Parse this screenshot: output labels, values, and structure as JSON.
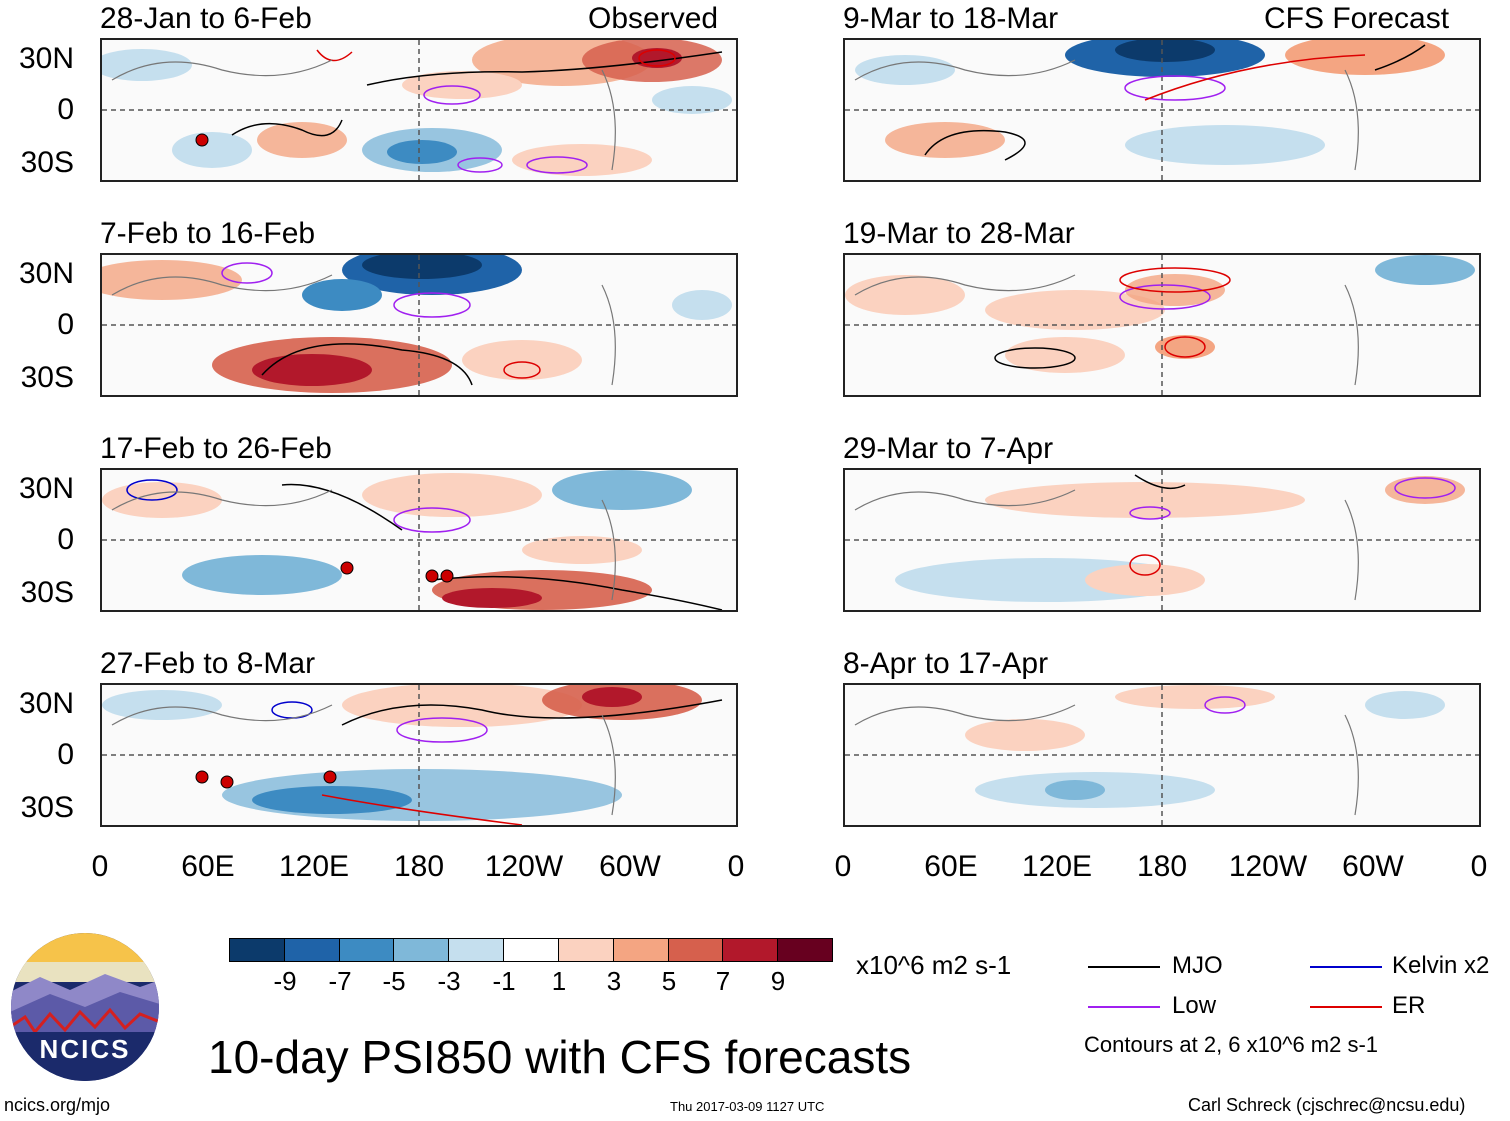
{
  "panels": {
    "left": [
      {
        "title": "28-Jan to 6-Feb",
        "tag": "Observed"
      },
      {
        "title": "7-Feb to 16-Feb",
        "tag": ""
      },
      {
        "title": "17-Feb to 26-Feb",
        "tag": ""
      },
      {
        "title": "27-Feb to 8-Mar",
        "tag": ""
      }
    ],
    "right": [
      {
        "title": "9-Mar to 18-Mar",
        "tag": "CFS Forecast"
      },
      {
        "title": "19-Mar to 28-Mar",
        "tag": ""
      },
      {
        "title": "29-Mar to 7-Apr",
        "tag": ""
      },
      {
        "title": "8-Apr to 17-Apr",
        "tag": ""
      }
    ]
  },
  "lat_labels": [
    "30N",
    "0",
    "30S"
  ],
  "lon_labels": [
    "0",
    "60E",
    "120E",
    "180",
    "120W",
    "60W",
    "0"
  ],
  "colorbar": {
    "ticks": [
      "-9",
      "-7",
      "-5",
      "-3",
      "-1",
      "1",
      "3",
      "5",
      "7",
      "9"
    ],
    "units": "x10^6 m2 s-1",
    "colors": [
      "#0c3a6b",
      "#1f63a8",
      "#3d8bc2",
      "#7fb8d9",
      "#c5dfee",
      "#ffffff",
      "#fbd2c0",
      "#f4a582",
      "#d6604d",
      "#b2182b",
      "#67001f"
    ]
  },
  "legend": {
    "items": [
      {
        "label": "MJO",
        "color": "#000000"
      },
      {
        "label": "Kelvin x2",
        "color": "#0000cc"
      },
      {
        "label": "Low",
        "color": "#a020f0"
      },
      {
        "label": "ER",
        "color": "#dd0000"
      }
    ],
    "note": "Contours at 2, 6 x10^6 m2 s-1"
  },
  "logo": {
    "text": "NCICS"
  },
  "main_title": "10-day PSI850 with CFS forecasts",
  "footer": {
    "url": "ncics.org/mjo",
    "timestamp": "Thu 2017-03-09 1127 UTC",
    "author": "Carl Schreck (cjschrec@ncsu.edu)"
  }
}
